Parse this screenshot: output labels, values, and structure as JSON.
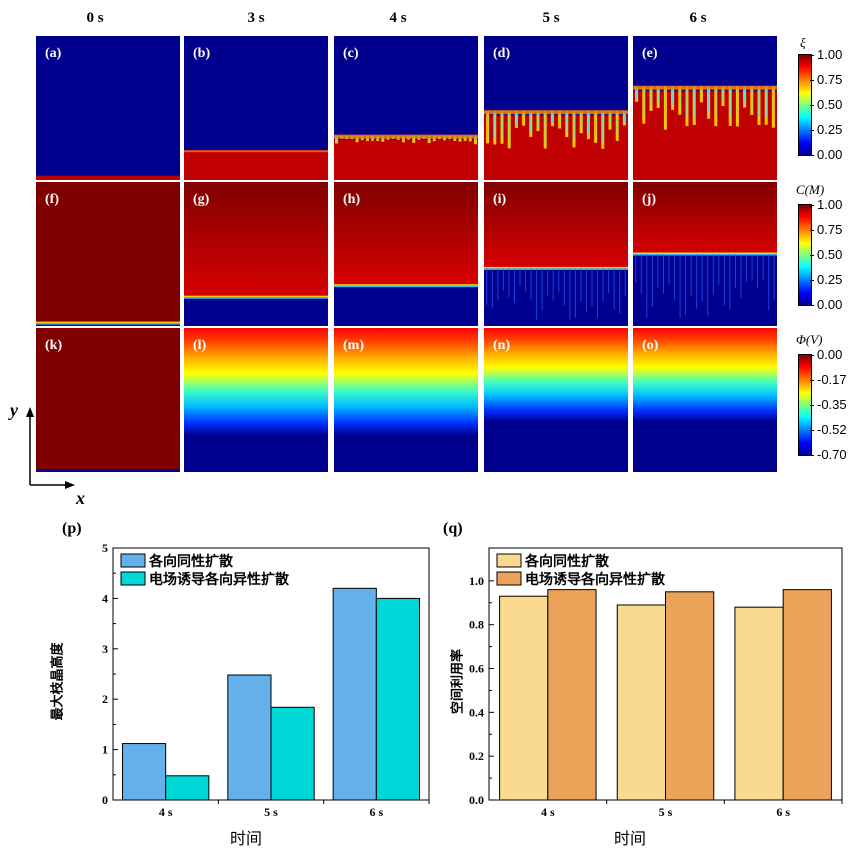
{
  "columns": [
    "0 s",
    "3 s",
    "4 s",
    "5 s",
    "6 s"
  ],
  "panel_labels": [
    [
      "(a)",
      "(b)",
      "(c)",
      "(d)",
      "(e)"
    ],
    [
      "(f)",
      "(g)",
      "(h)",
      "(i)",
      "(j)"
    ],
    [
      "(k)",
      "(l)",
      "(m)",
      "(n)",
      "(o)"
    ]
  ],
  "colorbars": [
    {
      "title": "ξ",
      "ticks": [
        "1.00",
        "0.75",
        "0.50",
        "0.25",
        "0.00"
      ]
    },
    {
      "title": "C(M)",
      "ticks": [
        "1.00",
        "0.75",
        "0.50",
        "0.25",
        "0.00"
      ]
    },
    {
      "title": "Φ(V)",
      "ticks": [
        "0.00",
        "-0.17",
        "-0.35",
        "-0.52",
        "-0.70"
      ]
    }
  ],
  "axes_arrows": {
    "y": "y",
    "x": "x"
  },
  "field_fronts": {
    "xi": [
      0.03,
      0.2,
      0.28,
      0.45,
      0.62
    ],
    "conc": [
      0.02,
      0.2,
      0.28,
      0.4,
      0.5
    ],
    "phi_dark": [
      0.97,
      0.75,
      0.75,
      0.65,
      0.65
    ]
  },
  "chart_data": [
    {
      "id": "p",
      "label": "(p)",
      "type": "bar",
      "categories": [
        "4 s",
        "5 s",
        "6 s"
      ],
      "series": [
        {
          "name": "各向同性扩散",
          "values": [
            1.12,
            2.48,
            4.2
          ],
          "color": "#64b0ea"
        },
        {
          "name": "电场诱导各向异性扩散",
          "values": [
            0.48,
            1.84,
            4.0
          ],
          "color": "#00d8d8"
        }
      ],
      "ylabel": "最大枝晶高度",
      "xlabel": "时间",
      "ylim": [
        0,
        5
      ],
      "yticks": [
        "0",
        "1",
        "2",
        "3",
        "4",
        "5"
      ]
    },
    {
      "id": "q",
      "label": "(q)",
      "type": "bar",
      "categories": [
        "4 s",
        "5 s",
        "6 s"
      ],
      "series": [
        {
          "name": "各向同性扩散",
          "values": [
            0.93,
            0.89,
            0.88
          ],
          "color": "#f9d88f"
        },
        {
          "name": "电场诱导各向异性扩散",
          "values": [
            0.96,
            0.95,
            0.96
          ],
          "color": "#eba35a"
        }
      ],
      "ylabel": "空间利用率",
      "xlabel": "时间",
      "ylim": [
        0,
        1.15
      ],
      "yticks": [
        "0.0",
        "0.2",
        "0.4",
        "0.6",
        "0.8",
        "1.0"
      ]
    }
  ]
}
